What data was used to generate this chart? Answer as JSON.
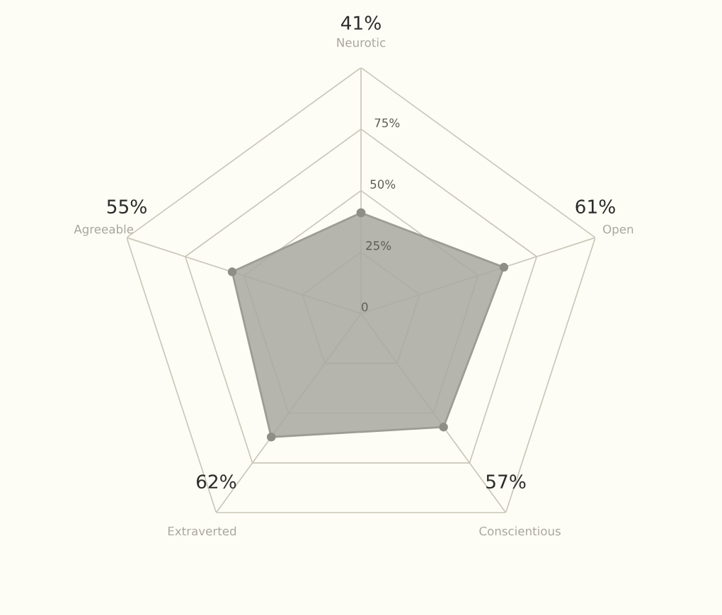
{
  "chart_data": {
    "type": "radar",
    "categories": [
      "Neurotic",
      "Open",
      "Conscientious",
      "Extraverted",
      "Agreeable"
    ],
    "series": [
      {
        "color": "#a9a8a0",
        "values": [
          41,
          61,
          57,
          62,
          55
        ]
      }
    ],
    "annotations": [
      "41%",
      "61%",
      "57%",
      "62%",
      "55%"
    ],
    "ylim": [
      0,
      100
    ],
    "yticks": [
      0,
      {
        "value": 25,
        "label": "25%"
      },
      {
        "value": 50,
        "label": "50%"
      },
      {
        "value": 75,
        "label": "75%"
      }
    ],
    "grid": true,
    "marker": "circle",
    "legend": false
  }
}
